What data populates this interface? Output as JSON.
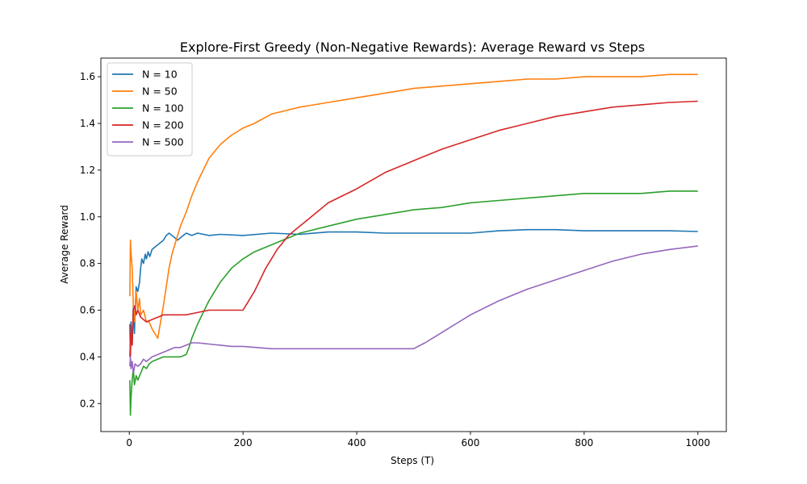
{
  "chart_data": {
    "type": "line",
    "title": "Explore-First Greedy (Non-Negative Rewards): Average Reward vs Steps",
    "xlabel": "Steps (T)",
    "ylabel": "Average Reward",
    "xlim": [
      -50,
      1050
    ],
    "ylim": [
      0.08,
      1.68
    ],
    "xticks": [
      0,
      200,
      400,
      600,
      800,
      1000
    ],
    "xtick_labels": [
      "0",
      "200",
      "400",
      "600",
      "800",
      "1000"
    ],
    "yticks": [
      0.2,
      0.4,
      0.6,
      0.8,
      1.0,
      1.2,
      1.4,
      1.6
    ],
    "ytick_labels": [
      "0.2",
      "0.4",
      "0.6",
      "0.8",
      "1.0",
      "1.2",
      "1.4",
      "1.6"
    ],
    "grid": false,
    "legend_position": "top-left",
    "series": [
      {
        "name": "N = 10",
        "color": "#1f77b4",
        "points": [
          [
            1,
            0.4
          ],
          [
            3,
            0.55
          ],
          [
            5,
            0.45
          ],
          [
            7,
            0.62
          ],
          [
            9,
            0.5
          ],
          [
            10,
            0.58
          ],
          [
            12,
            0.7
          ],
          [
            15,
            0.68
          ],
          [
            18,
            0.72
          ],
          [
            20,
            0.78
          ],
          [
            22,
            0.82
          ],
          [
            25,
            0.8
          ],
          [
            28,
            0.84
          ],
          [
            30,
            0.82
          ],
          [
            33,
            0.85
          ],
          [
            36,
            0.83
          ],
          [
            40,
            0.86
          ],
          [
            45,
            0.87
          ],
          [
            50,
            0.88
          ],
          [
            55,
            0.89
          ],
          [
            60,
            0.9
          ],
          [
            65,
            0.92
          ],
          [
            70,
            0.93
          ],
          [
            75,
            0.92
          ],
          [
            80,
            0.91
          ],
          [
            85,
            0.9
          ],
          [
            90,
            0.91
          ],
          [
            100,
            0.93
          ],
          [
            110,
            0.92
          ],
          [
            120,
            0.93
          ],
          [
            140,
            0.92
          ],
          [
            160,
            0.925
          ],
          [
            200,
            0.92
          ],
          [
            250,
            0.93
          ],
          [
            300,
            0.925
          ],
          [
            350,
            0.935
          ],
          [
            400,
            0.935
          ],
          [
            450,
            0.93
          ],
          [
            500,
            0.93
          ],
          [
            550,
            0.93
          ],
          [
            600,
            0.93
          ],
          [
            650,
            0.94
          ],
          [
            700,
            0.945
          ],
          [
            750,
            0.945
          ],
          [
            800,
            0.94
          ],
          [
            850,
            0.94
          ],
          [
            900,
            0.94
          ],
          [
            950,
            0.94
          ],
          [
            1000,
            0.937
          ]
        ]
      },
      {
        "name": "N = 50",
        "color": "#ff7f0e",
        "points": [
          [
            1,
            0.66
          ],
          [
            2,
            0.9
          ],
          [
            3,
            0.85
          ],
          [
            5,
            0.78
          ],
          [
            7,
            0.62
          ],
          [
            9,
            0.55
          ],
          [
            12,
            0.68
          ],
          [
            15,
            0.6
          ],
          [
            18,
            0.65
          ],
          [
            20,
            0.58
          ],
          [
            25,
            0.6
          ],
          [
            30,
            0.55
          ],
          [
            35,
            0.55
          ],
          [
            40,
            0.52
          ],
          [
            45,
            0.5
          ],
          [
            50,
            0.48
          ],
          [
            55,
            0.55
          ],
          [
            60,
            0.62
          ],
          [
            65,
            0.7
          ],
          [
            70,
            0.78
          ],
          [
            75,
            0.84
          ],
          [
            80,
            0.88
          ],
          [
            85,
            0.92
          ],
          [
            90,
            0.96
          ],
          [
            100,
            1.02
          ],
          [
            110,
            1.09
          ],
          [
            120,
            1.15
          ],
          [
            130,
            1.2
          ],
          [
            140,
            1.25
          ],
          [
            150,
            1.28
          ],
          [
            160,
            1.31
          ],
          [
            170,
            1.33
          ],
          [
            180,
            1.35
          ],
          [
            200,
            1.38
          ],
          [
            220,
            1.4
          ],
          [
            250,
            1.44
          ],
          [
            300,
            1.47
          ],
          [
            350,
            1.49
          ],
          [
            400,
            1.51
          ],
          [
            450,
            1.53
          ],
          [
            500,
            1.55
          ],
          [
            550,
            1.56
          ],
          [
            600,
            1.57
          ],
          [
            650,
            1.58
          ],
          [
            700,
            1.59
          ],
          [
            750,
            1.59
          ],
          [
            800,
            1.6
          ],
          [
            850,
            1.6
          ],
          [
            900,
            1.6
          ],
          [
            950,
            1.61
          ],
          [
            1000,
            1.61
          ]
        ]
      },
      {
        "name": "N = 100",
        "color": "#2ca02c",
        "points": [
          [
            1,
            0.3
          ],
          [
            2,
            0.15
          ],
          [
            3,
            0.22
          ],
          [
            5,
            0.3
          ],
          [
            7,
            0.35
          ],
          [
            9,
            0.28
          ],
          [
            12,
            0.32
          ],
          [
            15,
            0.3
          ],
          [
            20,
            0.33
          ],
          [
            25,
            0.36
          ],
          [
            30,
            0.35
          ],
          [
            35,
            0.37
          ],
          [
            40,
            0.38
          ],
          [
            50,
            0.39
          ],
          [
            60,
            0.4
          ],
          [
            70,
            0.4
          ],
          [
            80,
            0.4
          ],
          [
            90,
            0.4
          ],
          [
            100,
            0.41
          ],
          [
            105,
            0.44
          ],
          [
            110,
            0.48
          ],
          [
            120,
            0.54
          ],
          [
            130,
            0.59
          ],
          [
            140,
            0.64
          ],
          [
            150,
            0.68
          ],
          [
            160,
            0.72
          ],
          [
            170,
            0.75
          ],
          [
            180,
            0.78
          ],
          [
            190,
            0.8
          ],
          [
            200,
            0.82
          ],
          [
            220,
            0.85
          ],
          [
            250,
            0.88
          ],
          [
            300,
            0.93
          ],
          [
            350,
            0.96
          ],
          [
            400,
            0.99
          ],
          [
            450,
            1.01
          ],
          [
            500,
            1.03
          ],
          [
            550,
            1.04
          ],
          [
            600,
            1.06
          ],
          [
            650,
            1.07
          ],
          [
            700,
            1.08
          ],
          [
            750,
            1.09
          ],
          [
            800,
            1.1
          ],
          [
            850,
            1.1
          ],
          [
            900,
            1.1
          ],
          [
            950,
            1.11
          ],
          [
            1000,
            1.11
          ]
        ]
      },
      {
        "name": "N = 200",
        "color": "#d62728",
        "points": [
          [
            1,
            0.54
          ],
          [
            2,
            0.4
          ],
          [
            3,
            0.5
          ],
          [
            5,
            0.45
          ],
          [
            7,
            0.6
          ],
          [
            10,
            0.62
          ],
          [
            12,
            0.58
          ],
          [
            15,
            0.6
          ],
          [
            20,
            0.57
          ],
          [
            25,
            0.56
          ],
          [
            30,
            0.55
          ],
          [
            40,
            0.56
          ],
          [
            50,
            0.57
          ],
          [
            60,
            0.58
          ],
          [
            80,
            0.58
          ],
          [
            100,
            0.58
          ],
          [
            120,
            0.59
          ],
          [
            140,
            0.6
          ],
          [
            160,
            0.6
          ],
          [
            180,
            0.6
          ],
          [
            200,
            0.6
          ],
          [
            210,
            0.64
          ],
          [
            220,
            0.68
          ],
          [
            230,
            0.73
          ],
          [
            240,
            0.78
          ],
          [
            250,
            0.82
          ],
          [
            260,
            0.86
          ],
          [
            270,
            0.89
          ],
          [
            280,
            0.92
          ],
          [
            300,
            0.96
          ],
          [
            320,
            1.0
          ],
          [
            350,
            1.06
          ],
          [
            400,
            1.12
          ],
          [
            450,
            1.19
          ],
          [
            500,
            1.24
          ],
          [
            550,
            1.29
          ],
          [
            600,
            1.33
          ],
          [
            650,
            1.37
          ],
          [
            700,
            1.4
          ],
          [
            750,
            1.43
          ],
          [
            800,
            1.45
          ],
          [
            850,
            1.47
          ],
          [
            900,
            1.48
          ],
          [
            950,
            1.49
          ],
          [
            1000,
            1.495
          ]
        ]
      },
      {
        "name": "N = 500",
        "color": "#9467bd",
        "points": [
          [
            1,
            0.36
          ],
          [
            2,
            0.4
          ],
          [
            3,
            0.35
          ],
          [
            5,
            0.38
          ],
          [
            7,
            0.33
          ],
          [
            10,
            0.37
          ],
          [
            15,
            0.36
          ],
          [
            20,
            0.37
          ],
          [
            25,
            0.39
          ],
          [
            30,
            0.38
          ],
          [
            40,
            0.4
          ],
          [
            50,
            0.41
          ],
          [
            60,
            0.42
          ],
          [
            70,
            0.43
          ],
          [
            80,
            0.44
          ],
          [
            90,
            0.44
          ],
          [
            100,
            0.45
          ],
          [
            110,
            0.46
          ],
          [
            120,
            0.46
          ],
          [
            140,
            0.455
          ],
          [
            160,
            0.45
          ],
          [
            180,
            0.445
          ],
          [
            200,
            0.445
          ],
          [
            250,
            0.435
          ],
          [
            300,
            0.435
          ],
          [
            350,
            0.435
          ],
          [
            400,
            0.435
          ],
          [
            450,
            0.435
          ],
          [
            500,
            0.435
          ],
          [
            520,
            0.46
          ],
          [
            540,
            0.49
          ],
          [
            560,
            0.52
          ],
          [
            580,
            0.55
          ],
          [
            600,
            0.58
          ],
          [
            650,
            0.64
          ],
          [
            700,
            0.69
          ],
          [
            750,
            0.73
          ],
          [
            800,
            0.77
          ],
          [
            850,
            0.81
          ],
          [
            900,
            0.84
          ],
          [
            950,
            0.86
          ],
          [
            1000,
            0.875
          ]
        ]
      }
    ]
  }
}
